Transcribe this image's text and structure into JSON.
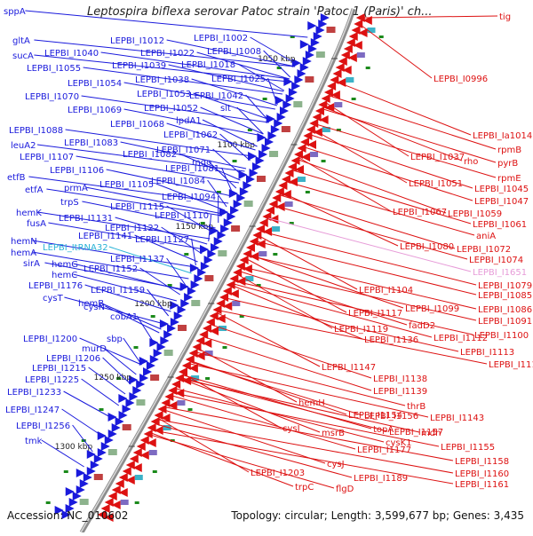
{
  "title": "Leptospira biflexa serovar Patoc strain 'Patoc 1 (Paris)' ch...",
  "footer": {
    "accession": "Accession: NC_010602",
    "summary": "Topology: circular; Length: 3,599,677 bp; Genes: 3,435"
  },
  "colors": {
    "plus_strand": "#1a1adc",
    "minus_strand": "#dd1111",
    "trna": "#2ab3d6",
    "rrna": "#e79bd8",
    "backbone": "#8c8c8c",
    "tick": "#1b8a1b"
  },
  "scale_ticks": [
    "1050 kbp",
    "1100 kbp",
    "1150 kbp",
    "1200 kbp",
    "1250 kbp",
    "1300 kbp"
  ],
  "left_labels": [
    "sppA",
    "gltA",
    "LEPBI_I1012",
    "LEPBI_I1002",
    "sucA",
    "LEPBI_I1040",
    "LEPBI_I1022",
    "LEPBI_I1008",
    "LEPBI_I1055",
    "LEPBI_I1039",
    "LEPBI_I1018",
    "LEPBI_I1054",
    "LEPBI_I1038",
    "LEPBI_I1025",
    "LEPBI_I1070",
    "LEPBI_I1053",
    "LEPBI_I1042",
    "LEPBI_I1069",
    "LEPBI_I1052",
    "slt",
    "LEPBI_I1068",
    "lpdA1",
    "LEPBI_I1088",
    "LEPBI_I1062",
    "LEPBI_I1083",
    "LEPBI_I1071",
    "leuA2",
    "LEPBI_I1082",
    "mqo",
    "LEPBI_I1107",
    "LEPBI_I1081",
    "LEPBI_I1106",
    "LEPBI_I1084",
    "etfB",
    "LEPBI_I1105",
    "etfA",
    "prmA",
    "LEPBI_I1094",
    "trpS",
    "LEPBI_I1115",
    "hemK",
    "LEPBI_I1110",
    "LEPBI_I1131",
    "fusA",
    "LEPBI_I1122",
    "LEPBI_I1141",
    "LEPBI_I1127",
    "hemN",
    "LEPBI_ItRNA32",
    "hemA",
    "LEPBI_I1137",
    "sirA",
    "hemG",
    "LEPBI_I1152",
    "hemC",
    "LEPBI_I1176",
    "LEPBI_I1159",
    "cysT",
    "hemB",
    "cysN",
    "cobA1",
    "LEPBI_I1200",
    "sbp",
    "murD",
    "LEPBI_I1206",
    "LEPBI_I1215",
    "LEPBI_I1225",
    "LEPBI_I1233",
    "LEPBI_I1247",
    "LEPBI_I1256",
    "tmk"
  ],
  "right_labels": [
    "tig",
    "LEPBI_I0996",
    "LEPBI_Ia1014",
    "rpmB",
    "LEPBI_I1037",
    "pyrB",
    "rho",
    "rpmE",
    "LEPBI_I1051",
    "LEPBI_I1045",
    "LEPBI_I1047",
    "LEPBI_I1067",
    "LEPBI_I1059",
    "LEPBI_I1061",
    "aniA",
    "LEPBI_I1072",
    "LEPBI_I1080",
    "LEPBI_I1074",
    "LEPBI_I1651",
    "LEPBI_I1079",
    "LEPBI_I1104",
    "LEPBI_I1085",
    "LEPBI_I1099",
    "LEPBI_I1086",
    "LEPBI_I1117",
    "LEPBI_I1091",
    "fadD2",
    "LEPBI_I1119",
    "LEPBI_I1100",
    "LEPBI_I1136",
    "LEPBI_I1112",
    "LEPBI_I1113",
    "LEPBI_I1147",
    "LEPBI_I1114",
    "LEPBI_I1138",
    "LEPBI_I1139",
    "hemH",
    "thrB",
    "LEPBI_I1154",
    "LEPBI_I1156",
    "LEPBI_I1143",
    "topA",
    "mdh",
    "cysI",
    "msrB",
    "LEPBI_I1157",
    "cysK1",
    "LEPBI_I1155",
    "LEPBI_I1177",
    "LEPBI_I1158",
    "cysJ",
    "LEPBI_I1160",
    "LEPBI_I1203",
    "LEPBI_I1189",
    "LEPBI_I1161",
    "trpC",
    "flgD"
  ]
}
